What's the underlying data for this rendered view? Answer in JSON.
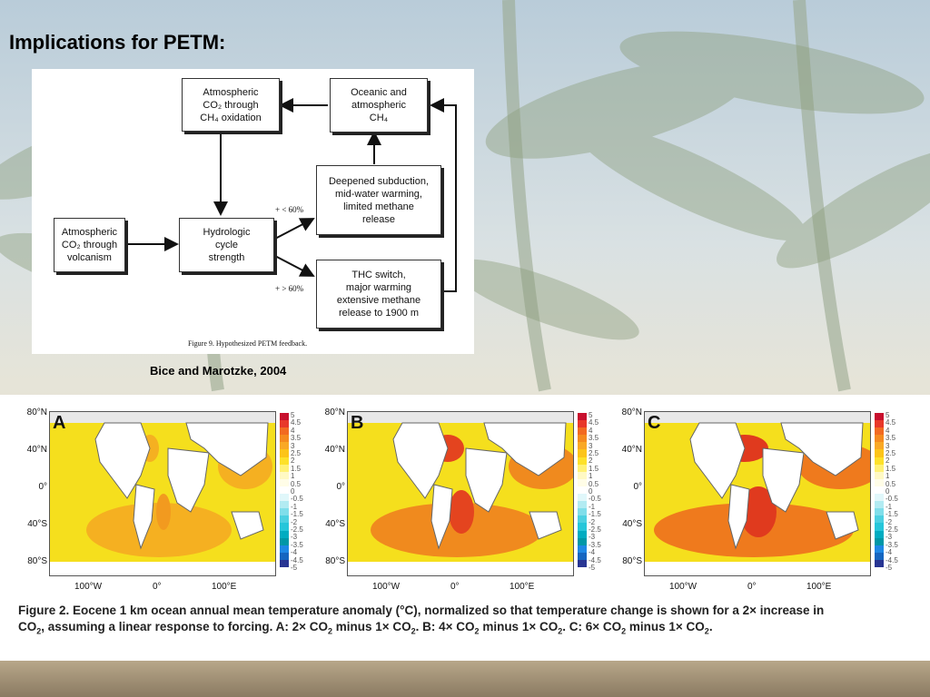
{
  "slide": {
    "title": "Implications for PETM:",
    "citation": "Bice and Marotzke, 2004"
  },
  "flow_diagram": {
    "boxes": {
      "atm_co2_ch4": [
        "Atmospheric",
        "CO₂ through",
        "CH₄ oxidation"
      ],
      "oceanic_ch4": [
        "Oceanic and",
        "atmospheric",
        "CH₄"
      ],
      "deepened": [
        "Deepened subduction,",
        "mid-water warming,",
        "limited methane",
        "release"
      ],
      "atm_co2_volc": [
        "Atmospheric",
        "CO₂ through",
        "volcanism"
      ],
      "hydrologic": [
        "Hydrologic",
        "cycle",
        "strength"
      ],
      "thc": [
        "THC switch,",
        "major warming",
        "extensive methane",
        "release to 1900 m"
      ]
    },
    "labels": {
      "lt60": "+ < 60%",
      "gt60": "+ > 60%"
    },
    "figure_caption": "Figure 9.   Hypothesized PETM feedback."
  },
  "maps": {
    "panels": [
      "A",
      "B",
      "C"
    ],
    "lat_ticks": [
      "80°N",
      "40°N",
      "0°",
      "40°S",
      "80°S"
    ],
    "lon_ticks": [
      "100°W",
      "0°",
      "100°E"
    ],
    "colorbar_labels": [
      "5",
      "4.5",
      "4",
      "3.5",
      "3",
      "2.5",
      "2",
      "1.5",
      "1",
      "0.5",
      "0",
      "-0.5",
      "-1",
      "-1.5",
      "-2",
      "-2.5",
      "-3",
      "-3.5",
      "-4",
      "-4.5",
      "-5"
    ],
    "colorbar_colors": [
      "#c8102e",
      "#e8382a",
      "#f26a21",
      "#f58a1f",
      "#f9a825",
      "#fcc419",
      "#fde12a",
      "#fff176",
      "#fff9c4",
      "#fffde7",
      "#ffffff",
      "#e0f7fa",
      "#b2ebf2",
      "#80deea",
      "#4dd0e1",
      "#26c6da",
      "#00acc1",
      "#0097a7",
      "#1e88e5",
      "#1565c0",
      "#283593"
    ]
  },
  "caption": {
    "line1": "Figure 2. Eocene 1 km ocean annual mean temperature anomaly (°C), normalized so that temperature change is shown for a 2× increase in",
    "line2_parts": [
      "CO",
      "2",
      ", assuming a linear response to forcing. A: 2× CO",
      "2",
      " minus 1× CO",
      "2",
      ". B: 4× CO",
      "2",
      " minus 1× CO",
      "2",
      ". C:  6× CO",
      "2",
      " minus 1× CO",
      "2",
      "."
    ]
  }
}
